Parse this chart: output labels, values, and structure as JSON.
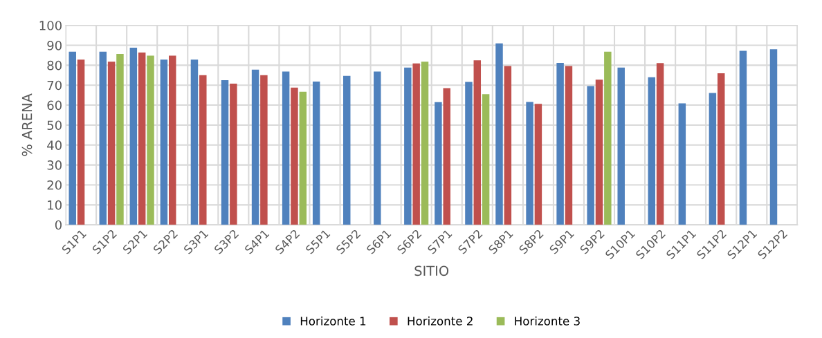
{
  "chart_data": {
    "type": "bar",
    "xlabel": "SITIO",
    "ylabel": "% ARENA",
    "categories": [
      "S1P1",
      "S1P2",
      "S2P1",
      "S2P2",
      "S3P1",
      "S3P2",
      "S4P1",
      "S4P2",
      "S5P1",
      "S5P2",
      "S6P1",
      "S6P2",
      "S7P1",
      "S7P2",
      "S8P1",
      "S8P2",
      "S9P1",
      "S9P2",
      "S10P1",
      "S10P2",
      "S11P1",
      "S11P2",
      "S12P1",
      "S12P2"
    ],
    "series": [
      {
        "name": "Horizonte 1",
        "color": "#4f81bd",
        "values": [
          86.8,
          86.8,
          88.8,
          82.8,
          82.8,
          72.5,
          77.8,
          76.8,
          71.8,
          74.7,
          76.8,
          78.8,
          61.5,
          71.6,
          91.0,
          61.6,
          81.2,
          69.6,
          78.8,
          74.0,
          60.9,
          66.1,
          87.2,
          88.0
        ]
      },
      {
        "name": "Horizonte 2",
        "color": "#c0504d",
        "values": [
          82.8,
          81.8,
          86.4,
          84.8,
          75.0,
          70.8,
          75.0,
          68.8,
          null,
          null,
          null,
          80.9,
          68.5,
          82.5,
          79.6,
          60.6,
          79.6,
          72.8,
          null,
          81.1,
          null,
          76.0,
          null,
          null
        ]
      },
      {
        "name": "Horizonte 3",
        "color": "#9bbb59",
        "values": [
          null,
          85.7,
          84.8,
          null,
          null,
          null,
          null,
          66.7,
          null,
          null,
          null,
          81.8,
          null,
          65.5,
          null,
          null,
          null,
          86.8,
          null,
          null,
          null,
          null,
          null,
          null
        ]
      }
    ],
    "ylim": [
      0,
      100
    ],
    "yticks": [
      0,
      10,
      20,
      30,
      40,
      50,
      60,
      70,
      80,
      90,
      100
    ],
    "grid": true,
    "legend": "bottom"
  }
}
